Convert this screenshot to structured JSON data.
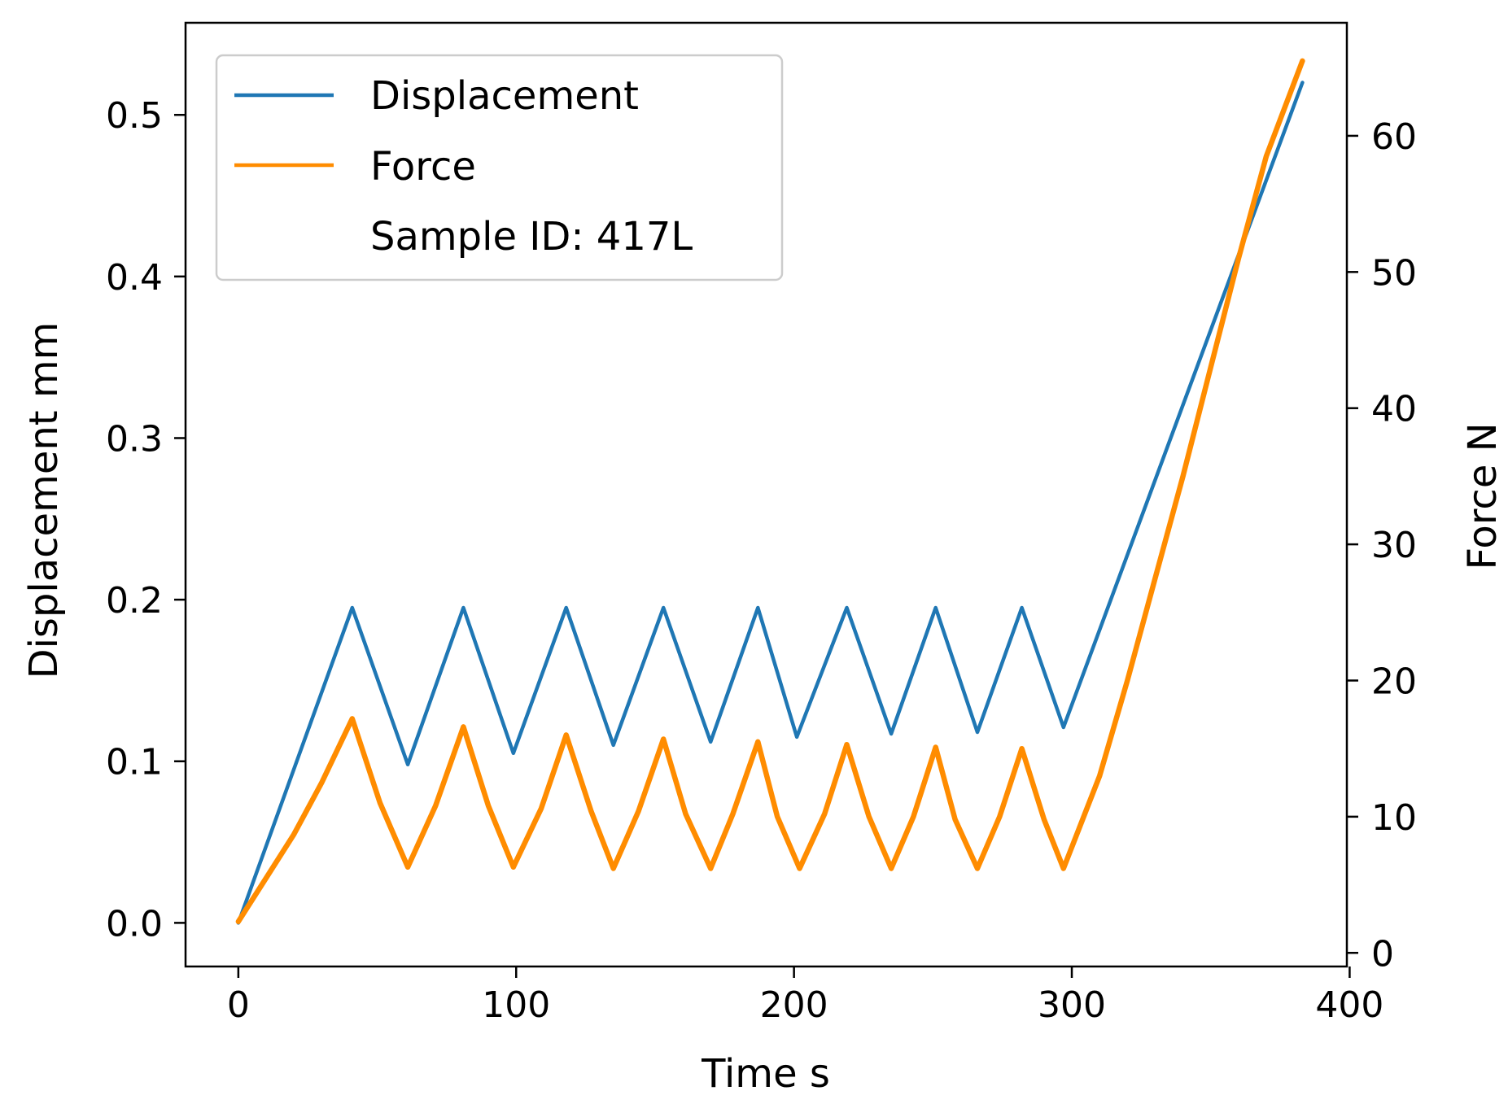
{
  "chart_data": {
    "type": "line",
    "xlabel": "Time s",
    "ylabel": "Displacement mm",
    "y2label": "Force N",
    "xlim": [
      -19,
      399
    ],
    "ylim": [
      -0.027,
      0.557
    ],
    "y2lim": [
      -1.0,
      68.3
    ],
    "xticks": [
      0,
      100,
      200,
      300,
      400
    ],
    "yticks": [
      0.0,
      0.1,
      0.2,
      0.3,
      0.4,
      0.5
    ],
    "y2ticks": [
      0,
      10,
      20,
      30,
      40,
      50,
      60
    ],
    "legend_position": "upper-left",
    "legend_note": "Sample ID: 417L",
    "series": [
      {
        "name": "Displacement",
        "axis": "left",
        "color": "#1f77b4",
        "x": [
          0,
          41,
          61,
          81,
          99,
          118,
          135,
          153,
          170,
          187,
          201,
          219,
          235,
          251,
          266,
          282,
          297,
          383
        ],
        "y": [
          0.0,
          0.195,
          0.098,
          0.195,
          0.105,
          0.195,
          0.11,
          0.195,
          0.112,
          0.195,
          0.115,
          0.195,
          0.117,
          0.195,
          0.118,
          0.195,
          0.121,
          0.52
        ]
      },
      {
        "name": "Force",
        "axis": "right",
        "color": "#ff8c00",
        "x": [
          0,
          10,
          20,
          30,
          41,
          51,
          61,
          71,
          81,
          90,
          99,
          109,
          118,
          127,
          135,
          144,
          153,
          161,
          170,
          178,
          187,
          194,
          202,
          211,
          219,
          227,
          235,
          243,
          251,
          258,
          266,
          274,
          282,
          290,
          297,
          310,
          320,
          330,
          340,
          350,
          360,
          370,
          383
        ],
        "y": [
          2.3,
          5.5,
          8.7,
          12.5,
          17.2,
          11.0,
          6.3,
          10.8,
          16.6,
          10.8,
          6.3,
          10.6,
          16.0,
          10.4,
          6.2,
          10.4,
          15.7,
          10.2,
          6.2,
          10.2,
          15.5,
          10.0,
          6.2,
          10.2,
          15.3,
          10.0,
          6.2,
          10.0,
          15.1,
          9.8,
          6.2,
          10.0,
          15.0,
          9.8,
          6.2,
          13.0,
          20.0,
          27.5,
          35.0,
          43.0,
          51.0,
          58.5,
          65.5
        ]
      }
    ]
  }
}
